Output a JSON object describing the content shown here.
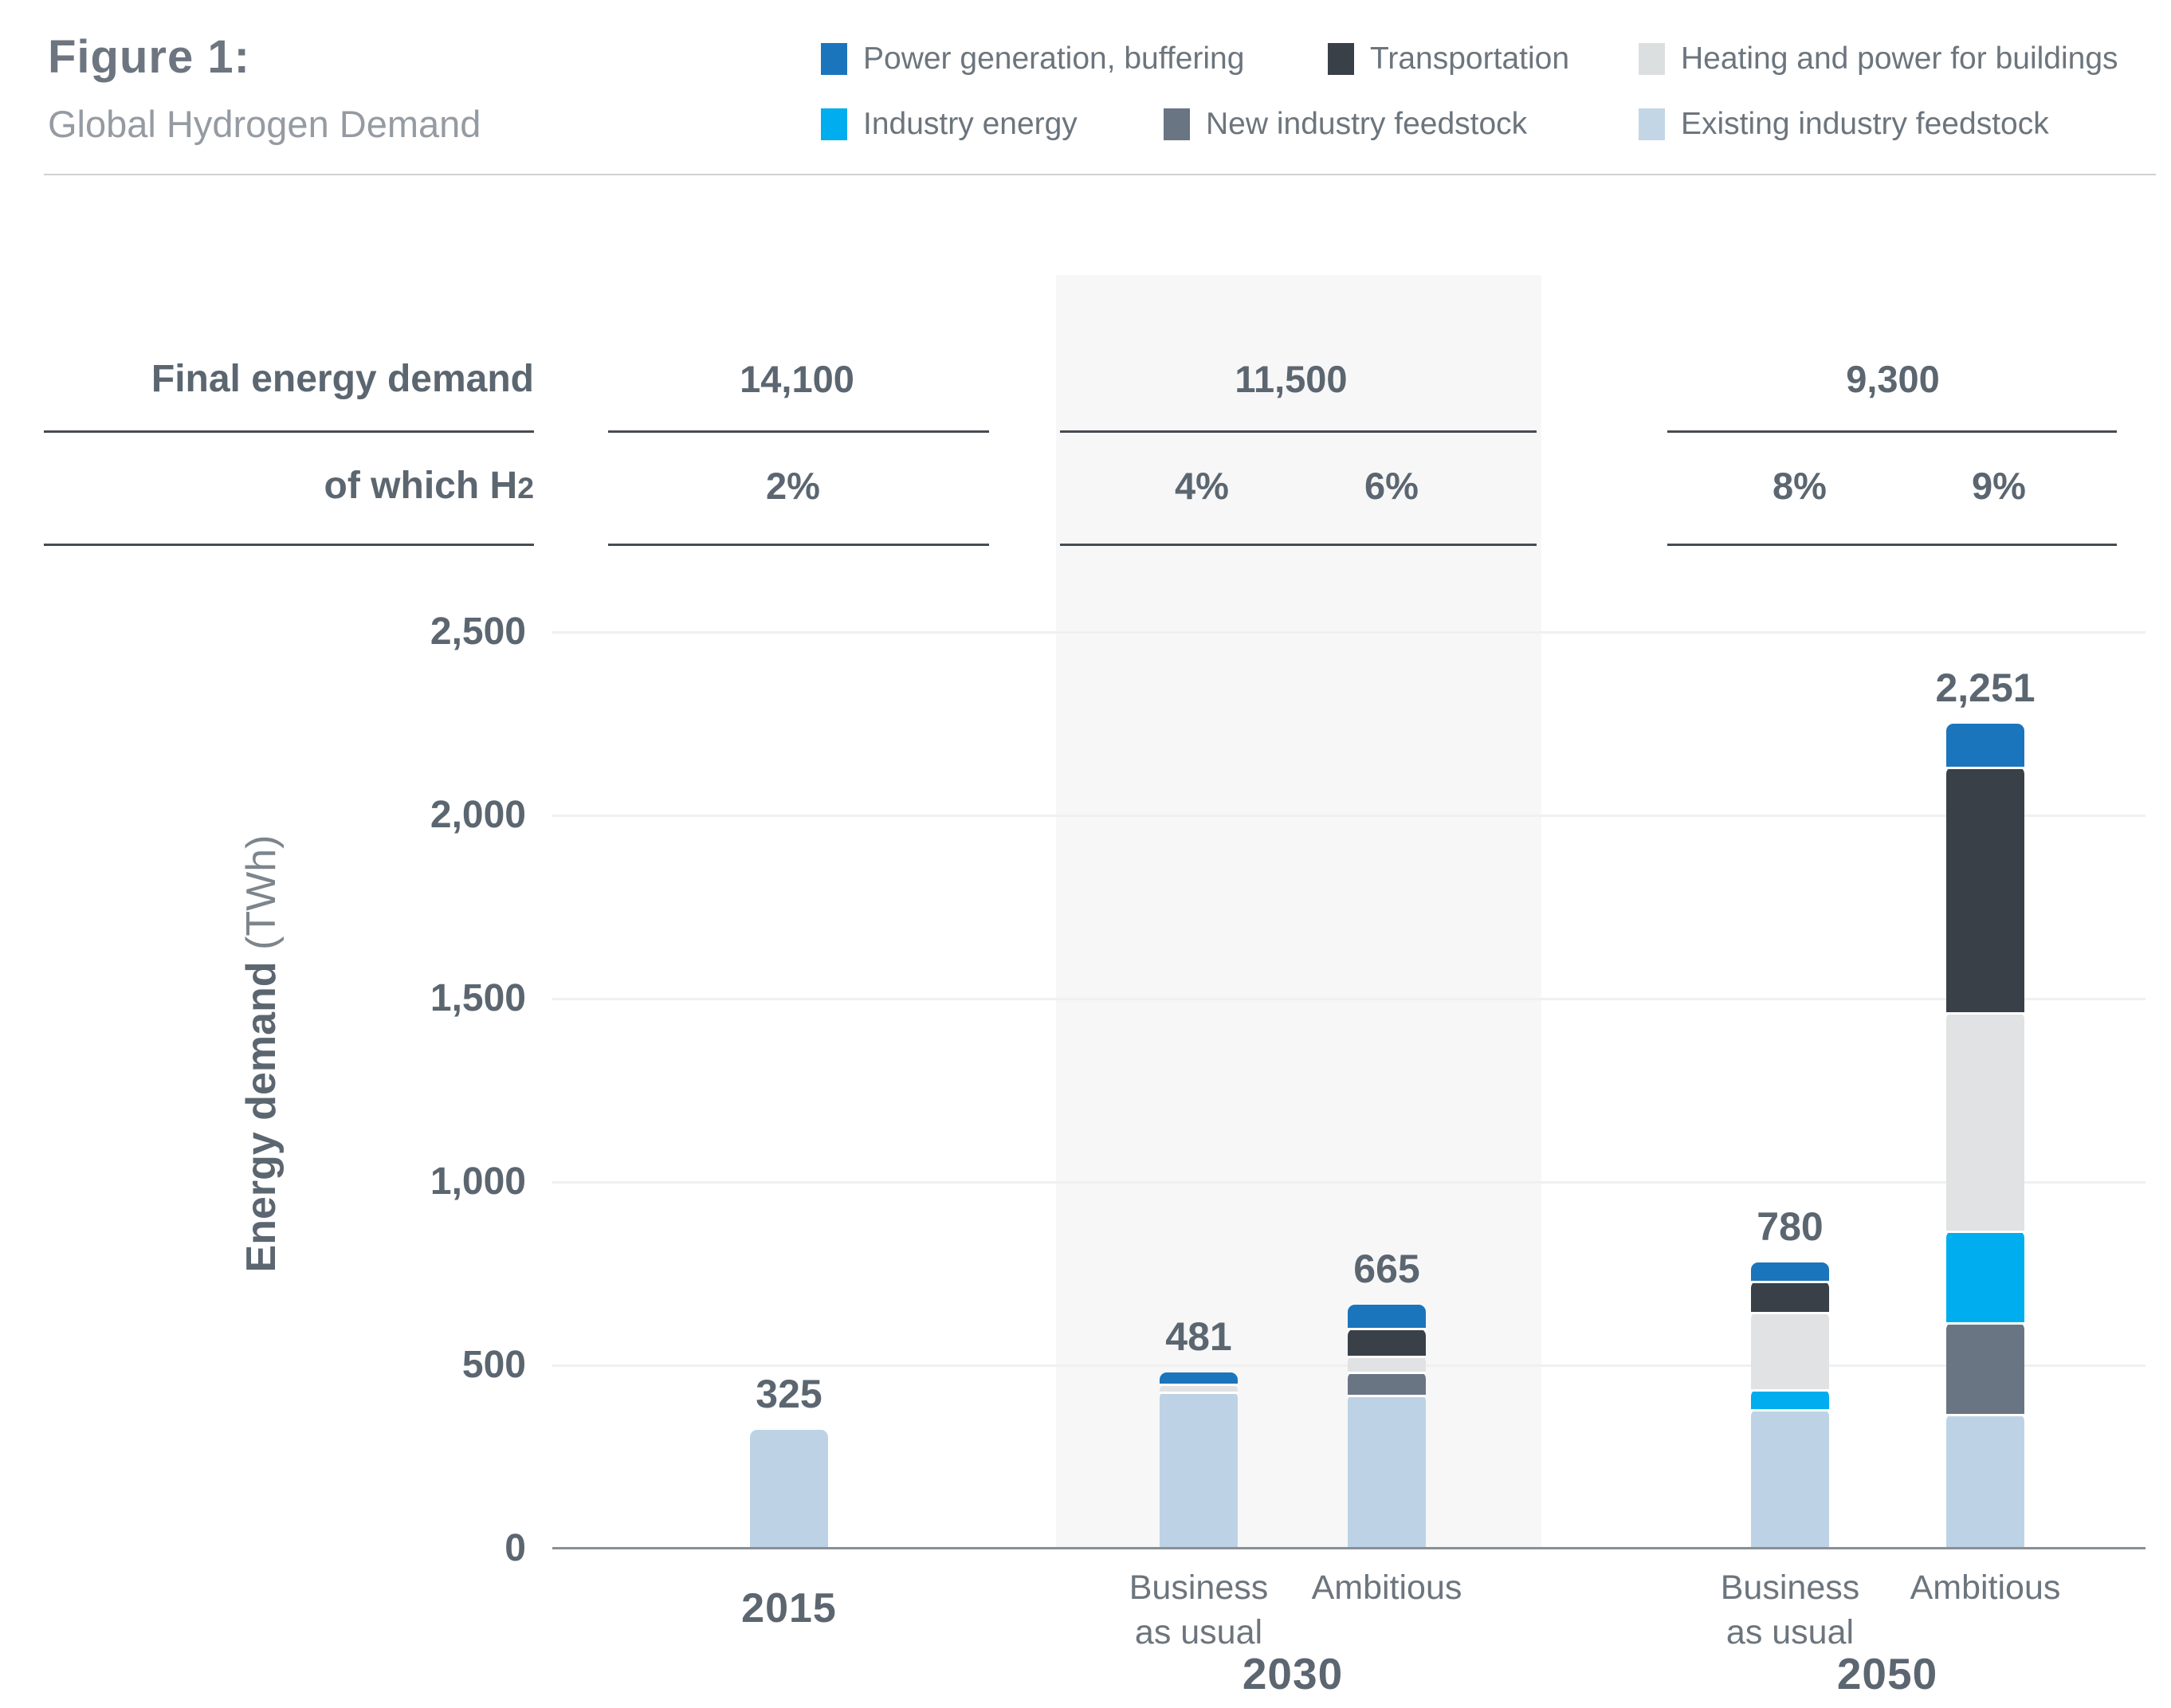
{
  "header": {
    "figure_label": "Figure 1:",
    "figure_title": "Global Hydrogen Demand"
  },
  "legend": {
    "rows": [
      [
        {
          "label": "Power generation, buffering",
          "color": "#1b75bc"
        },
        {
          "label": "Transportation",
          "color": "#3a4047"
        },
        {
          "label": "Heating and power for buildings",
          "color": "#dcdfe0"
        }
      ],
      [
        {
          "label": "Industry energy",
          "color": "#00aeef"
        },
        {
          "label": "New industry feedstock",
          "color": "#6a7584"
        },
        {
          "label": "Existing industry feedstock",
          "color": "#c3d6e6"
        }
      ]
    ]
  },
  "table": {
    "row1_label": "Final energy demand",
    "row2_label_prefix": "of which H",
    "row2_label_sub": "2",
    "final_energy_demand": [
      "14,100",
      "11,500",
      "9,300"
    ],
    "h2_shares": [
      "2%",
      "4%",
      "6%",
      "8%",
      "9%"
    ]
  },
  "chart_data": {
    "type": "bar",
    "stacked": true,
    "title": "Global Hydrogen Demand",
    "ylabel": "Energy demand",
    "ylabel_unit": " (TWh)",
    "ylim": [
      0,
      2500
    ],
    "grid": true,
    "legend_position": "top-right",
    "yticks": [
      {
        "value": 0,
        "label": "0"
      },
      {
        "value": 500,
        "label": "500"
      },
      {
        "value": 1000,
        "label": "1,000"
      },
      {
        "value": 1500,
        "label": "1,500"
      },
      {
        "value": 2000,
        "label": "2,000"
      },
      {
        "value": 2500,
        "label": "2,500"
      }
    ],
    "categories": [
      "2015",
      "2030 Business as usual",
      "2030 Ambitious",
      "2050 Business as usual",
      "2050 Ambitious"
    ],
    "bar_labels": [
      {
        "lines": [
          "2015"
        ],
        "style": "year"
      },
      {
        "lines": [
          "Business",
          "as usual"
        ],
        "style": "scenario"
      },
      {
        "lines": [
          "Ambitious"
        ],
        "style": "scenario"
      },
      {
        "lines": [
          "Business",
          "as usual"
        ],
        "style": "scenario"
      },
      {
        "lines": [
          "Ambitious"
        ],
        "style": "scenario"
      }
    ],
    "group_labels": [
      "2030",
      "2050"
    ],
    "totals": [
      325,
      481,
      665,
      780,
      2251
    ],
    "totals_display": [
      "325",
      "481",
      "665",
      "780",
      "2,251"
    ],
    "series": [
      {
        "name": "Existing industry feedstock",
        "color": "#bdd3e5",
        "values": [
          325,
          430,
          421,
          380,
          368
        ]
      },
      {
        "name": "New industry feedstock",
        "color": "#6a7584",
        "values": [
          0,
          0,
          62,
          0,
          250
        ]
      },
      {
        "name": "Industry energy",
        "color": "#00aeef",
        "values": [
          0,
          0,
          0,
          55,
          250
        ]
      },
      {
        "name": "Heating and power for buildings",
        "color": "#e0e2e3",
        "values": [
          0,
          21,
          45,
          210,
          595
        ]
      },
      {
        "name": "Transportation",
        "color": "#3a4047",
        "values": [
          0,
          0,
          73,
          85,
          670
        ]
      },
      {
        "name": "Power generation, buffering",
        "color": "#1b75bc",
        "values": [
          0,
          30,
          64,
          50,
          118
        ]
      }
    ]
  }
}
